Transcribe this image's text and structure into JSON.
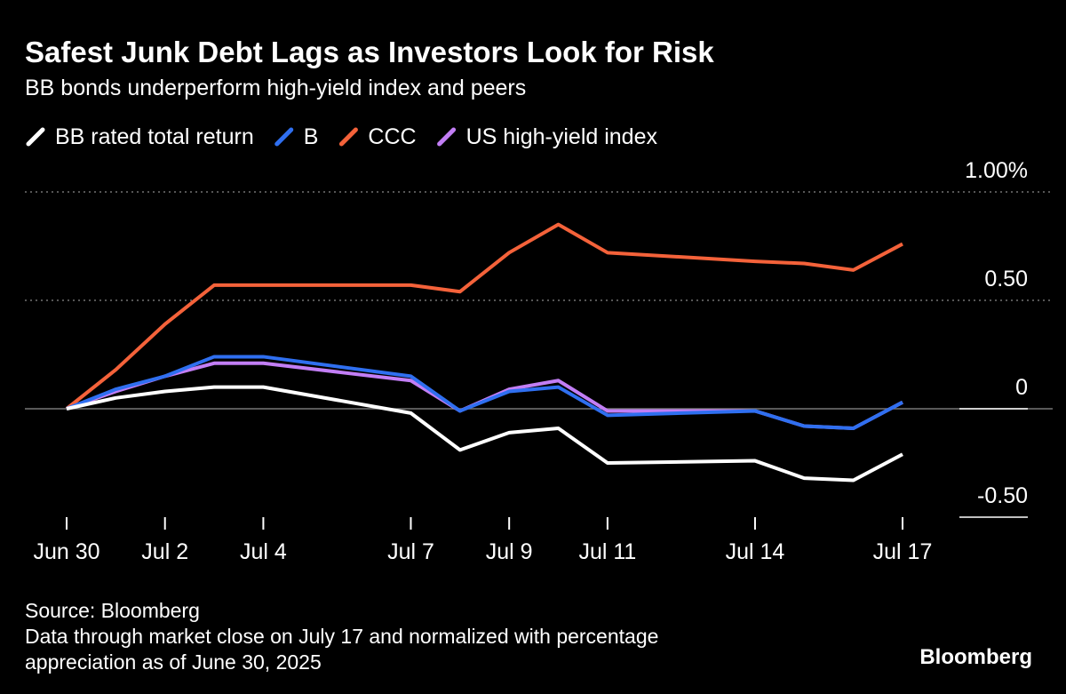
{
  "chart_data": {
    "type": "line",
    "title": "Safest Junk Debt Lags as Investors Look for Risk",
    "subtitle": "BB bonds underperform high-yield index and peers",
    "x": [
      "Jun 30",
      "Jul 1",
      "Jul 2",
      "Jul 3",
      "Jul 4",
      "Jul 7",
      "Jul 8",
      "Jul 9",
      "Jul 10",
      "Jul 11",
      "Jul 14",
      "Jul 15",
      "Jul 16",
      "Jul 17"
    ],
    "xticks": [
      "Jun 30",
      "Jul 2",
      "Jul 4",
      "Jul 7",
      "Jul 9",
      "Jul 11",
      "Jul 14",
      "Jul 17"
    ],
    "series": [
      {
        "name": "BB rated total return",
        "color": "#ffffff",
        "values": [
          0,
          0.05,
          0.08,
          0.1,
          0.1,
          -0.02,
          -0.19,
          -0.11,
          -0.09,
          -0.25,
          -0.24,
          -0.32,
          -0.33,
          -0.21
        ]
      },
      {
        "name": "B",
        "color": "#2f6ff0",
        "values": [
          0,
          0.09,
          0.15,
          0.24,
          0.24,
          0.15,
          -0.01,
          0.08,
          0.1,
          -0.03,
          -0.01,
          -0.08,
          -0.09,
          0.03
        ]
      },
      {
        "name": "CCC",
        "color": "#f4623a",
        "values": [
          0,
          0.18,
          0.39,
          0.57,
          0.57,
          0.57,
          0.54,
          0.72,
          0.85,
          0.72,
          0.68,
          0.67,
          0.64,
          0.76
        ]
      },
      {
        "name": "US high-yield index",
        "color": "#c27ef5",
        "values": [
          0,
          0.08,
          0.15,
          0.21,
          0.21,
          0.13,
          -0.01,
          0.09,
          0.13,
          -0.01,
          -0.01,
          -0.08,
          -0.09,
          0.03
        ]
      }
    ],
    "series_order": [
      2,
      3,
      1,
      0
    ],
    "ylim": [
      -0.5,
      1.0
    ],
    "yticks": [
      {
        "value": 1.0,
        "label": "1.00%"
      },
      {
        "value": 0.5,
        "label": "0.50"
      },
      0,
      {
        "value": -0.5,
        "label": "-0.50"
      }
    ],
    "grid": true,
    "source": "Source: Bloomberg",
    "note_lines": [
      "Data through market close on July 17 and normalized with percentage",
      "appreciation as of June 30, 2025"
    ],
    "brand": "Bloomberg"
  }
}
